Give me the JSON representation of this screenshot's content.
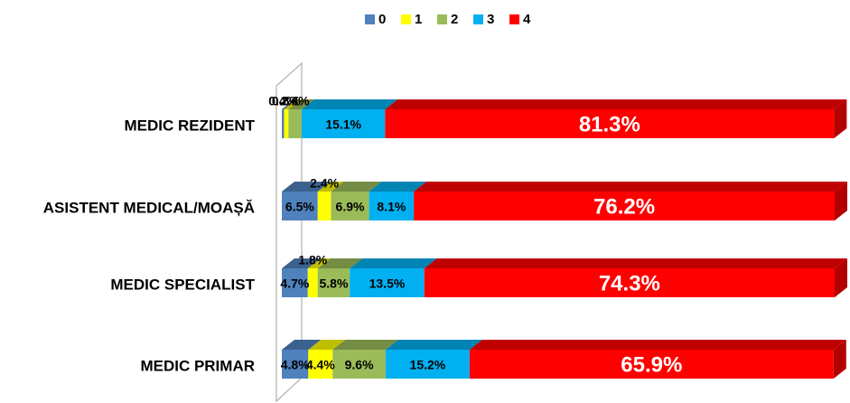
{
  "chart_data": {
    "type": "stacked-bar-horizontal",
    "categories": [
      "MEDIC REZIDENT",
      "ASISTENT MEDICAL/MOAȘĂ",
      "MEDIC SPECIALIST",
      "MEDIC PRIMAR"
    ],
    "series": [
      {
        "name": "0",
        "color": "#4f81bd",
        "values": [
          0.4,
          6.5,
          4.7,
          4.8
        ],
        "value_labels": [
          "0.4%",
          "6.5%",
          "4.7%",
          "4.8%"
        ]
      },
      {
        "name": "1",
        "color": "#ffff00",
        "values": [
          0.8,
          2.4,
          1.8,
          4.4
        ],
        "value_labels": [
          "0.8%",
          "2.4%",
          "1.8%",
          "4.4%"
        ]
      },
      {
        "name": "2",
        "color": "#9bbb59",
        "values": [
          2.4,
          6.9,
          5.8,
          9.6
        ],
        "value_labels": [
          "2.4%",
          "6.9%",
          "5.8%",
          "9.6%"
        ]
      },
      {
        "name": "3",
        "color": "#00b0f0",
        "values": [
          15.1,
          8.1,
          13.5,
          15.2
        ],
        "value_labels": [
          "15.1%",
          "8.1%",
          "13.5%",
          "15.2%"
        ]
      },
      {
        "name": "4",
        "color": "#ff0000",
        "values": [
          81.3,
          76.2,
          74.3,
          65.9
        ],
        "value_labels": [
          "81.3%",
          "76.2%",
          "74.3%",
          "65.9%"
        ]
      }
    ],
    "legend": "top"
  }
}
